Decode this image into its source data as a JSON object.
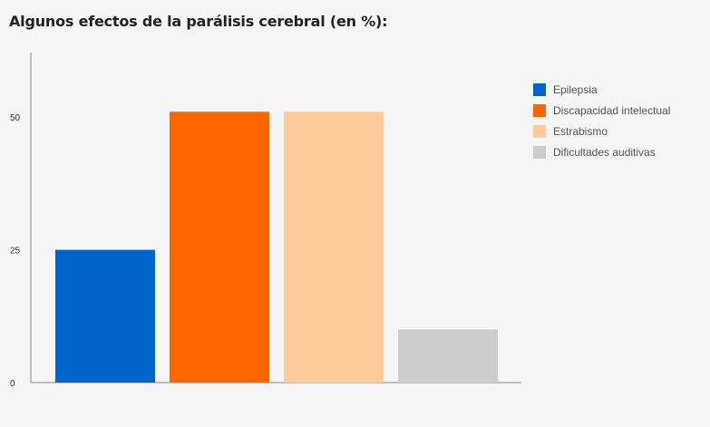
{
  "chart_data": {
    "type": "bar",
    "title": "Algunos efectos de la parálisis cerebral (en %):",
    "categories": [
      "Epilepsia",
      "Discapacidad intelectual",
      "Estrabismo",
      "Dificultades auditivas"
    ],
    "values": [
      25,
      51,
      51,
      10
    ],
    "colors": [
      "#0066cc",
      "#ff6600",
      "#ffcc99",
      "#cccccc"
    ],
    "yticks": [
      0,
      25,
      50
    ],
    "ylim": [
      0,
      63
    ],
    "grid": false,
    "legend_position": "right"
  }
}
